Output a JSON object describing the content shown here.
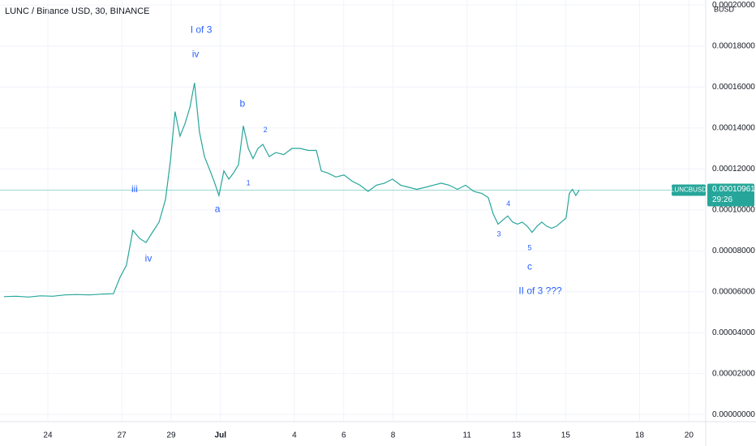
{
  "chart_data": {
    "type": "line",
    "title": "LUNC / Binance USD, 30, BINANCE",
    "y_unit": "BUSD",
    "symbol": "LUNCBUSD",
    "last_price": {
      "value": 0.00010961,
      "label": "0.00010961"
    },
    "countdown": "29:26",
    "color": "#26a69a",
    "annotation_color": "#2962ff",
    "grid": true,
    "xlim": [
      -1.94,
      26.68
    ],
    "ylim": [
      -3.5e-06,
      0.0002025
    ],
    "xticks": [
      {
        "value": 0,
        "label": "24"
      },
      {
        "value": 3,
        "label": "27"
      },
      {
        "value": 5,
        "label": "29"
      },
      {
        "value": 7,
        "label": "Jul"
      },
      {
        "value": 10,
        "label": "4"
      },
      {
        "value": 12,
        "label": "6"
      },
      {
        "value": 14,
        "label": "8"
      },
      {
        "value": 17,
        "label": "11"
      },
      {
        "value": 19,
        "label": "13"
      },
      {
        "value": 21,
        "label": "15"
      },
      {
        "value": 24,
        "label": "18"
      },
      {
        "value": 26,
        "label": "20"
      }
    ],
    "yticks": [
      {
        "value": 0,
        "label": "0.00000000"
      },
      {
        "value": 2e-05,
        "label": "0.00002000"
      },
      {
        "value": 4e-05,
        "label": "0.00004000"
      },
      {
        "value": 6e-05,
        "label": "0.00006000"
      },
      {
        "value": 8e-05,
        "label": "0.00008000"
      },
      {
        "value": 0.0001,
        "label": "0.00010000"
      },
      {
        "value": 0.00012,
        "label": "0.00012000"
      },
      {
        "value": 0.00014,
        "label": "0.00014000"
      },
      {
        "value": 0.00016,
        "label": "0.00016000"
      },
      {
        "value": 0.00018,
        "label": "0.00018000"
      },
      {
        "value": 0.0002,
        "label": "0.00020000"
      }
    ],
    "x": [
      -1.78,
      -1.28,
      -0.79,
      -0.3,
      0.2,
      0.69,
      1.18,
      1.68,
      2.17,
      2.66,
      2.93,
      3.19,
      3.45,
      3.72,
      3.98,
      4.24,
      4.51,
      4.77,
      4.97,
      5.16,
      5.36,
      5.56,
      5.76,
      5.95,
      6.15,
      6.35,
      6.55,
      6.74,
      6.94,
      7.14,
      7.34,
      7.53,
      7.73,
      7.93,
      8.13,
      8.32,
      8.52,
      8.72,
      8.98,
      9.24,
      9.57,
      9.9,
      10.23,
      10.56,
      10.89,
      11.09,
      11.35,
      11.68,
      12.01,
      12.34,
      12.66,
      12.99,
      13.32,
      13.65,
      13.98,
      14.31,
      14.64,
      14.97,
      15.3,
      15.63,
      15.95,
      16.28,
      16.61,
      16.94,
      17.27,
      17.6,
      17.86,
      18.06,
      18.26,
      18.45,
      18.65,
      18.85,
      19.05,
      19.24,
      19.44,
      19.64,
      19.84,
      20.03,
      20.23,
      20.43,
      20.63,
      20.82,
      21.02,
      21.15,
      21.28,
      21.41,
      21.55
    ],
    "values": [
      5.76e-05,
      5.78e-05,
      5.74e-05,
      5.8e-05,
      5.78e-05,
      5.84e-05,
      5.86e-05,
      5.84e-05,
      5.88e-05,
      5.9e-05,
      6.7e-05,
      7.3e-05,
      9e-05,
      8.6e-05,
      8.4e-05,
      8.9e-05,
      9.4e-05,
      0.000105,
      0.000124,
      0.000148,
      0.000136,
      0.000142,
      0.00015,
      0.000162,
      0.000138,
      0.000126,
      0.00012,
      0.000114,
      0.000107,
      0.000119,
      0.000115,
      0.000118,
      0.000122,
      0.000141,
      0.00013,
      0.000125,
      0.00013,
      0.000132,
      0.000126,
      0.000128,
      0.000127,
      0.00013,
      0.00013,
      0.000129,
      0.000129,
      0.000119,
      0.000118,
      0.000116,
      0.000117,
      0.000114,
      0.000112,
      0.000109,
      0.000112,
      0.000113,
      0.000115,
      0.000112,
      0.000111,
      0.00011,
      0.000111,
      0.000112,
      0.000113,
      0.000112,
      0.00011,
      0.000112,
      0.000109,
      0.000108,
      0.000106,
      9.8e-05,
      9.3e-05,
      9.5e-05,
      9.7e-05,
      9.4e-05,
      9.3e-05,
      9.4e-05,
      9.2e-05,
      8.9e-05,
      9.2e-05,
      9.4e-05,
      9.2e-05,
      9.1e-05,
      9.2e-05,
      9.4e-05,
      9.6e-05,
      0.000108,
      0.00011,
      0.000107,
      0.0001096
    ],
    "wave_labels": [
      {
        "text": "I of 3",
        "x": 6.22,
        "y": 0.0001877
      },
      {
        "text": "iv",
        "x": 5.99,
        "y": 0.0001758
      },
      {
        "text": "iii",
        "x": 3.52,
        "y": 0.0001099
      },
      {
        "text": "iv",
        "x": 4.08,
        "y": 7.6e-05
      },
      {
        "text": "a",
        "x": 6.88,
        "y": 0.0001002
      },
      {
        "text": "b",
        "x": 7.89,
        "y": 0.0001516
      },
      {
        "text": "c",
        "x": 19.54,
        "y": 7.21e-05
      },
      {
        "text": "II of 3 ???",
        "x": 19.97,
        "y": 6.02e-05
      }
    ],
    "sub_wave_labels": [
      {
        "text": "1",
        "x": 8.13,
        "y": 0.000113
      },
      {
        "text": "2",
        "x": 8.82,
        "y": 0.0001389
      },
      {
        "text": "3",
        "x": 18.29,
        "y": 8.79e-05
      },
      {
        "text": "4",
        "x": 18.68,
        "y": 0.0001029
      },
      {
        "text": "5",
        "x": 19.54,
        "y": 8.13e-05
      }
    ]
  }
}
